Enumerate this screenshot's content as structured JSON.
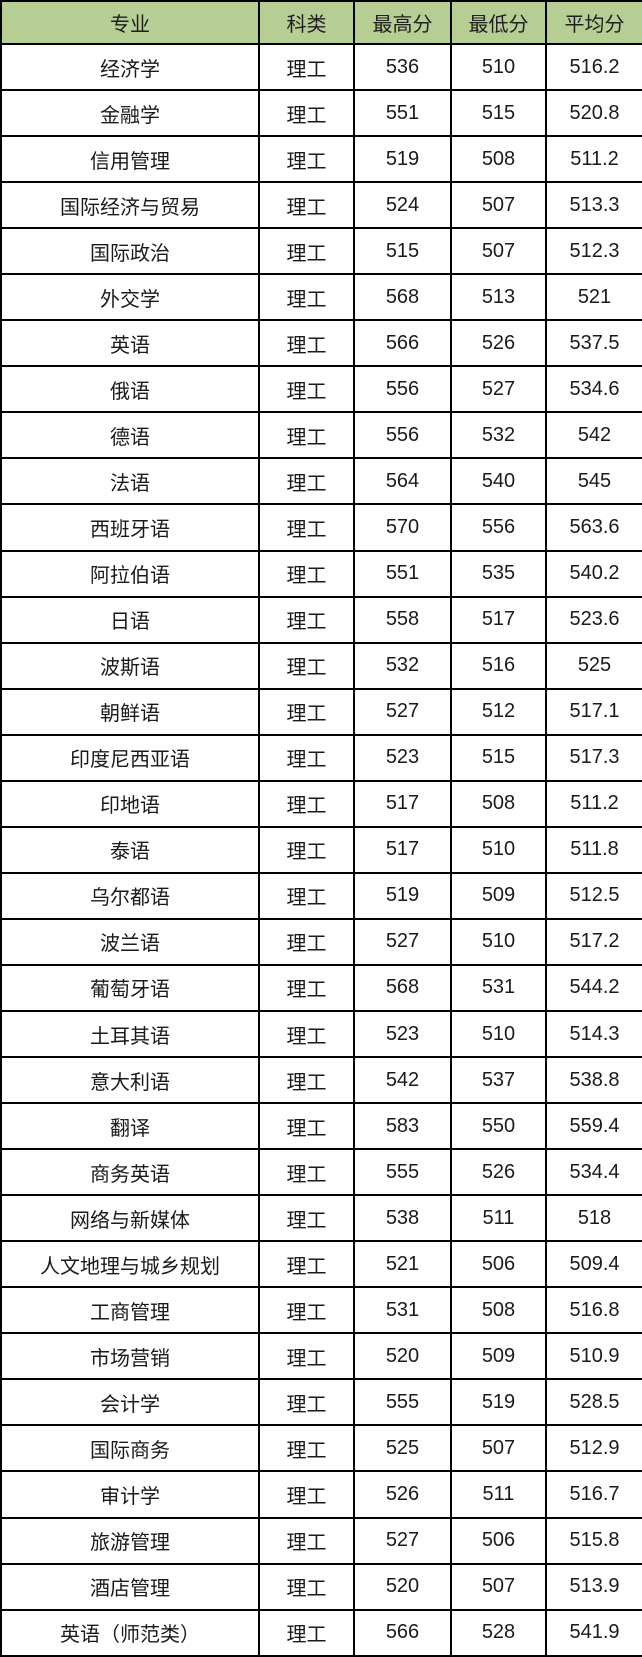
{
  "chart_data": {
    "type": "table",
    "columns": [
      "专业",
      "科类",
      "最高分",
      "最低分",
      "平均分"
    ],
    "rows": [
      [
        "经济学",
        "理工",
        "536",
        "510",
        "516.2"
      ],
      [
        "金融学",
        "理工",
        "551",
        "515",
        "520.8"
      ],
      [
        "信用管理",
        "理工",
        "519",
        "508",
        "511.2"
      ],
      [
        "国际经济与贸易",
        "理工",
        "524",
        "507",
        "513.3"
      ],
      [
        "国际政治",
        "理工",
        "515",
        "507",
        "512.3"
      ],
      [
        "外交学",
        "理工",
        "568",
        "513",
        "521"
      ],
      [
        "英语",
        "理工",
        "566",
        "526",
        "537.5"
      ],
      [
        "俄语",
        "理工",
        "556",
        "527",
        "534.6"
      ],
      [
        "德语",
        "理工",
        "556",
        "532",
        "542"
      ],
      [
        "法语",
        "理工",
        "564",
        "540",
        "545"
      ],
      [
        "西班牙语",
        "理工",
        "570",
        "556",
        "563.6"
      ],
      [
        "阿拉伯语",
        "理工",
        "551",
        "535",
        "540.2"
      ],
      [
        "日语",
        "理工",
        "558",
        "517",
        "523.6"
      ],
      [
        "波斯语",
        "理工",
        "532",
        "516",
        "525"
      ],
      [
        "朝鲜语",
        "理工",
        "527",
        "512",
        "517.1"
      ],
      [
        "印度尼西亚语",
        "理工",
        "523",
        "515",
        "517.3"
      ],
      [
        "印地语",
        "理工",
        "517",
        "508",
        "511.2"
      ],
      [
        "泰语",
        "理工",
        "517",
        "510",
        "511.8"
      ],
      [
        "乌尔都语",
        "理工",
        "519",
        "509",
        "512.5"
      ],
      [
        "波兰语",
        "理工",
        "527",
        "510",
        "517.2"
      ],
      [
        "葡萄牙语",
        "理工",
        "568",
        "531",
        "544.2"
      ],
      [
        "土耳其语",
        "理工",
        "523",
        "510",
        "514.3"
      ],
      [
        "意大利语",
        "理工",
        "542",
        "537",
        "538.8"
      ],
      [
        "翻译",
        "理工",
        "583",
        "550",
        "559.4"
      ],
      [
        "商务英语",
        "理工",
        "555",
        "526",
        "534.4"
      ],
      [
        "网络与新媒体",
        "理工",
        "538",
        "511",
        "518"
      ],
      [
        "人文地理与城乡规划",
        "理工",
        "521",
        "506",
        "509.4"
      ],
      [
        "工商管理",
        "理工",
        "531",
        "508",
        "516.8"
      ],
      [
        "市场营销",
        "理工",
        "520",
        "509",
        "510.9"
      ],
      [
        "会计学",
        "理工",
        "555",
        "519",
        "528.5"
      ],
      [
        "国际商务",
        "理工",
        "525",
        "507",
        "512.9"
      ],
      [
        "审计学",
        "理工",
        "526",
        "511",
        "516.7"
      ],
      [
        "旅游管理",
        "理工",
        "527",
        "506",
        "515.8"
      ],
      [
        "酒店管理",
        "理工",
        "520",
        "507",
        "513.9"
      ],
      [
        "英语（师范类）",
        "理工",
        "566",
        "528",
        "541.9"
      ]
    ],
    "colors": {
      "header_bg": "#b6ce94",
      "border": "#000000",
      "header_text": "#1f1f1f",
      "body_text": "#1a1a1a"
    },
    "layout": {
      "grid": "on",
      "header_row": true
    }
  }
}
